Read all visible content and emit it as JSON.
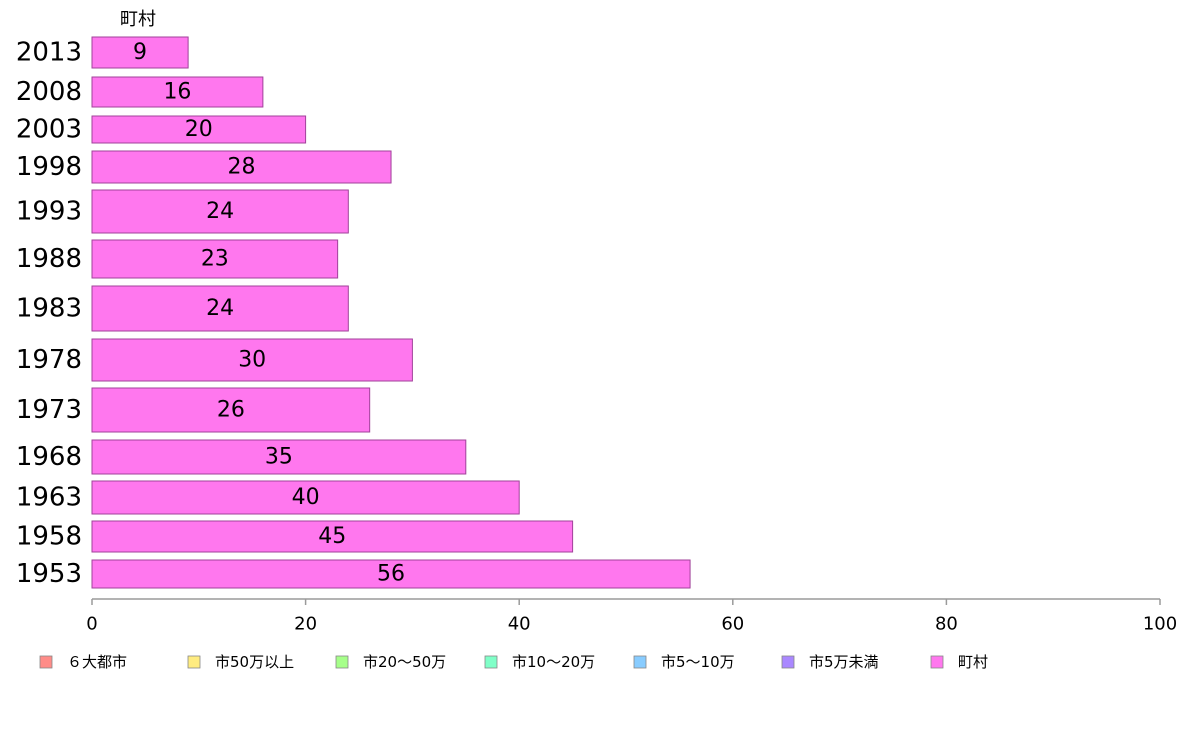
{
  "chart_data": {
    "type": "bar",
    "orientation": "horizontal",
    "series_label": "町村",
    "categories": [
      "2013",
      "2008",
      "2003",
      "1998",
      "1993",
      "1988",
      "1983",
      "1978",
      "1973",
      "1968",
      "1963",
      "1958",
      "1953"
    ],
    "values": [
      9,
      16,
      20,
      28,
      24,
      23,
      24,
      30,
      26,
      35,
      40,
      45,
      56
    ],
    "value_labels": [
      "9",
      "16",
      "20",
      "28",
      "24",
      "23",
      "24",
      "30",
      "26",
      "35",
      "40",
      "45",
      "56"
    ],
    "xlim": [
      0,
      100
    ],
    "xticks": [
      0,
      20,
      40,
      60,
      80,
      100
    ],
    "xtick_labels": [
      "0",
      "20",
      "40",
      "60",
      "80",
      "100"
    ],
    "grid": false,
    "bar_color": "#ff77ee",
    "legend_position": "bottom",
    "legend": [
      {
        "label": "６大都市",
        "color": "#ff8c88"
      },
      {
        "label": "市50万以上",
        "color": "#ffec80"
      },
      {
        "label": "市20～50万",
        "color": "#a6ff8a"
      },
      {
        "label": "市10～20万",
        "color": "#80ffc8"
      },
      {
        "label": "市5～10万",
        "color": "#88ccff"
      },
      {
        "label": "市5万未満",
        "color": "#aa88ff"
      },
      {
        "label": "町村",
        "color": "#ff77ee"
      }
    ]
  }
}
